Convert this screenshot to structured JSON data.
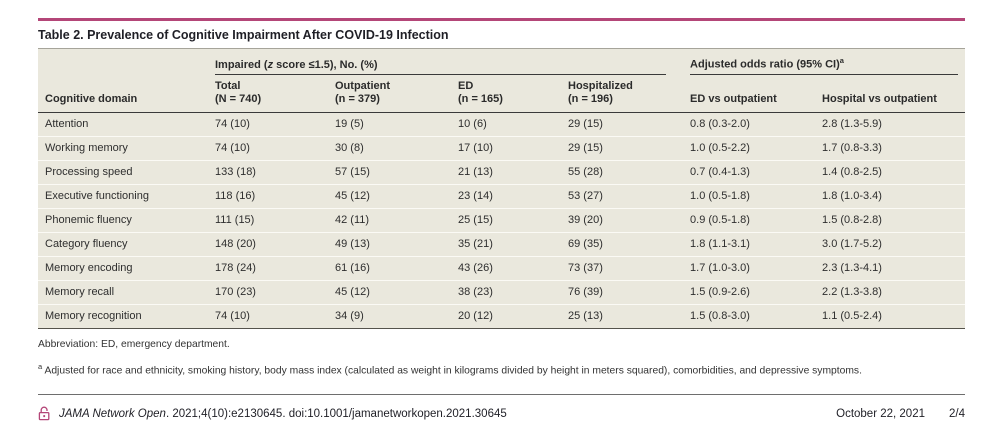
{
  "colors": {
    "accent": "#b44678",
    "table_background": "#eae8dd"
  },
  "title": "Table 2. Prevalence of Cognitive Impairment After COVID-19 Infection",
  "table": {
    "group_impaired": {
      "pre": "Impaired (",
      "z": "z",
      "post": " score ≤1.5), No. (%)"
    },
    "group_aor": {
      "label": "Adjusted odds ratio (95% CI)",
      "sup": "a"
    },
    "columns": {
      "domain": "Cognitive domain",
      "total_1": "Total",
      "total_2": "(N = 740)",
      "outpatient_1": "Outpatient",
      "outpatient_2": "(n = 379)",
      "ed_1": "ED",
      "ed_2": "(n = 165)",
      "hospitalized_1": "Hospitalized",
      "hospitalized_2": "(n = 196)",
      "aor_ed": "ED vs outpatient",
      "aor_hosp": "Hospital vs outpatient"
    },
    "rows": [
      {
        "domain": "Attention",
        "total": "74 (10)",
        "outpatient": "19 (5)",
        "ed": "10 (6)",
        "hospitalized": "29 (15)",
        "aor_ed": "0.8 (0.3-2.0)",
        "aor_hosp": "2.8 (1.3-5.9)"
      },
      {
        "domain": "Working memory",
        "total": "74 (10)",
        "outpatient": "30 (8)",
        "ed": "17 (10)",
        "hospitalized": "29 (15)",
        "aor_ed": "1.0 (0.5-2.2)",
        "aor_hosp": "1.7 (0.8-3.3)"
      },
      {
        "domain": "Processing speed",
        "total": "133 (18)",
        "outpatient": "57 (15)",
        "ed": "21 (13)",
        "hospitalized": "55 (28)",
        "aor_ed": "0.7 (0.4-1.3)",
        "aor_hosp": "1.4 (0.8-2.5)"
      },
      {
        "domain": "Executive functioning",
        "total": "118 (16)",
        "outpatient": "45 (12)",
        "ed": "23 (14)",
        "hospitalized": "53 (27)",
        "aor_ed": "1.0 (0.5-1.8)",
        "aor_hosp": "1.8 (1.0-3.4)"
      },
      {
        "domain": "Phonemic fluency",
        "total": "111 (15)",
        "outpatient": "42 (11)",
        "ed": "25 (15)",
        "hospitalized": "39 (20)",
        "aor_ed": "0.9 (0.5-1.8)",
        "aor_hosp": "1.5 (0.8-2.8)"
      },
      {
        "domain": "Category fluency",
        "total": "148 (20)",
        "outpatient": "49 (13)",
        "ed": "35 (21)",
        "hospitalized": "69 (35)",
        "aor_ed": "1.8 (1.1-3.1)",
        "aor_hosp": "3.0 (1.7-5.2)"
      },
      {
        "domain": "Memory encoding",
        "total": "178 (24)",
        "outpatient": "61 (16)",
        "ed": "43 (26)",
        "hospitalized": "73 (37)",
        "aor_ed": "1.7 (1.0-3.0)",
        "aor_hosp": "2.3 (1.3-4.1)"
      },
      {
        "domain": "Memory recall",
        "total": "170 (23)",
        "outpatient": "45 (12)",
        "ed": "38 (23)",
        "hospitalized": "76 (39)",
        "aor_ed": "1.5 (0.9-2.6)",
        "aor_hosp": "2.2 (1.3-3.8)"
      },
      {
        "domain": "Memory recognition",
        "total": "74 (10)",
        "outpatient": "34 (9)",
        "ed": "20 (12)",
        "hospitalized": "25 (13)",
        "aor_ed": "1.5 (0.8-3.0)",
        "aor_hosp": "1.1 (0.5-2.4)"
      }
    ]
  },
  "footnotes": {
    "abbreviation": "Abbreviation: ED, emergency department.",
    "a_marker": "a",
    "a_text": " Adjusted for race and ethnicity, smoking history, body mass index (calculated as weight in kilograms divided by height in meters squared), comorbidities, and depressive symptoms."
  },
  "footer": {
    "journal": "JAMA Network Open",
    "citation_rest": ". 2021;4(10):e2130645. doi:10.1001/jamanetworkopen.2021.30645",
    "date": "October 22, 2021",
    "page": "2/4"
  }
}
